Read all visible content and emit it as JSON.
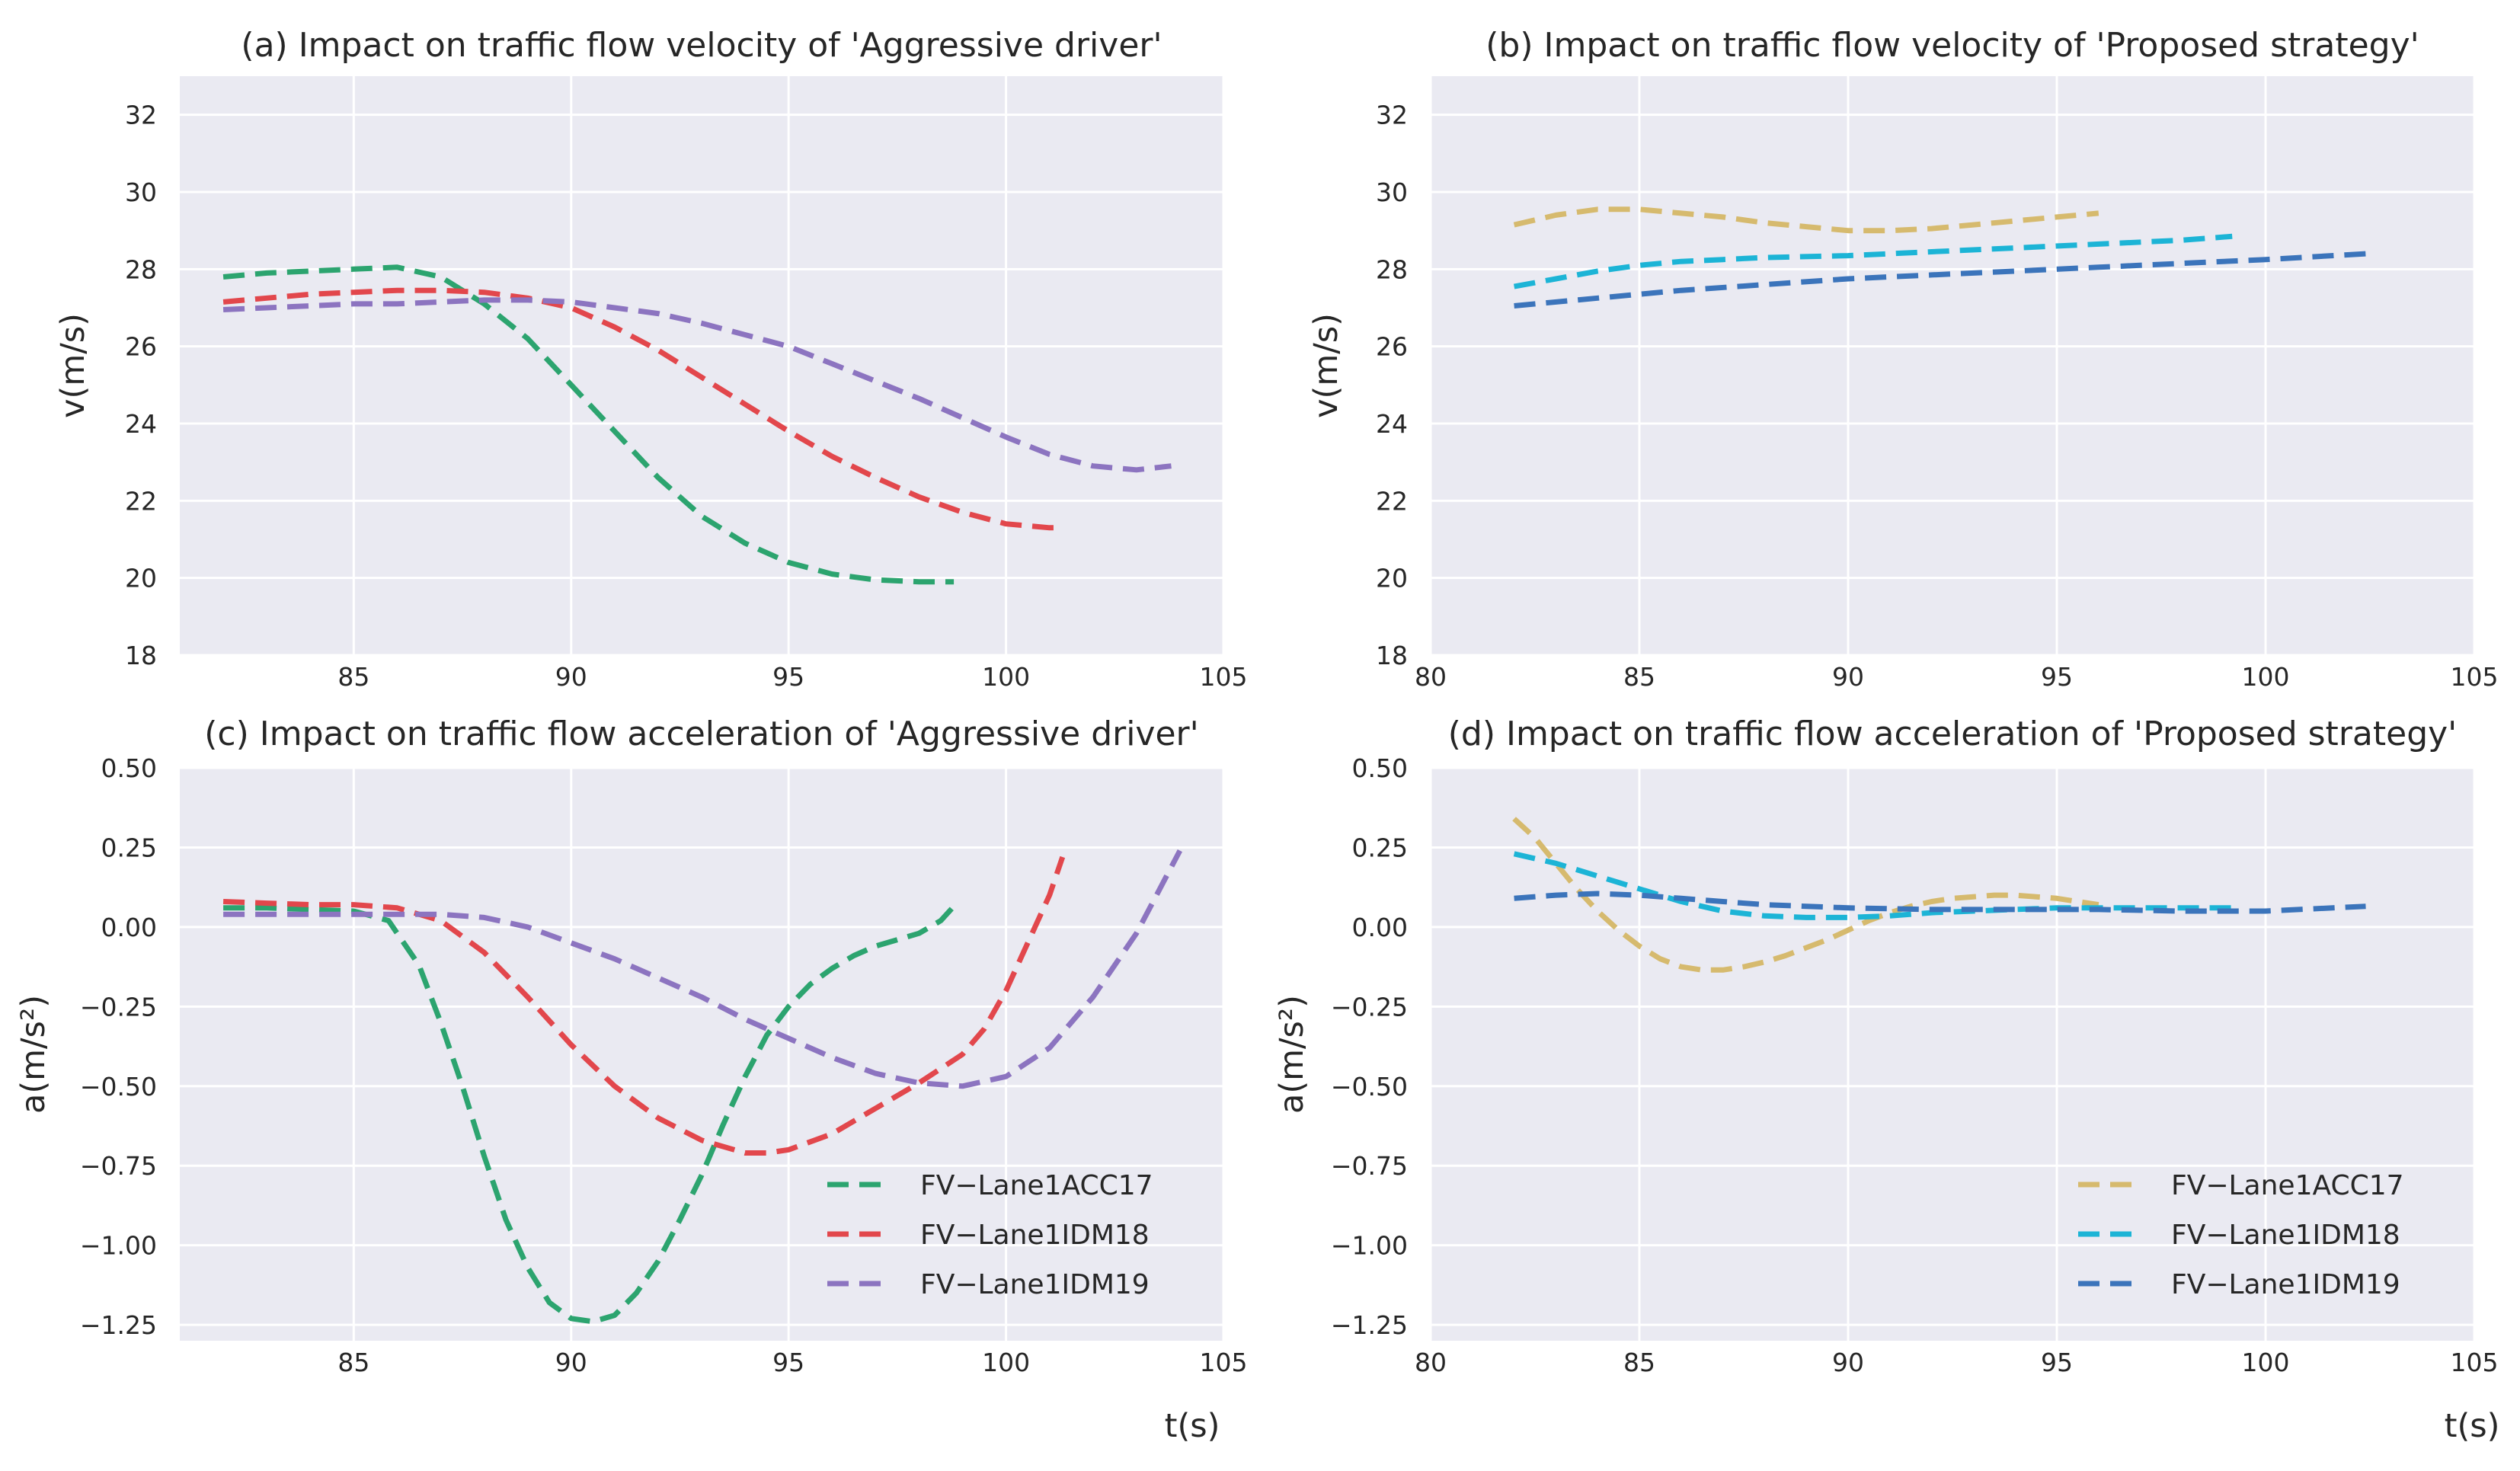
{
  "colors": {
    "background": "#eaeaf2",
    "grid": "#ffffff",
    "text": "#262626"
  },
  "chart_data": [
    {
      "id": "a",
      "type": "line",
      "title": "(a) Impact on traffic flow velocity of 'Aggressive driver'",
      "xlabel": "",
      "ylabel": "v(m/s)",
      "xlim": [
        81,
        105
      ],
      "ylim": [
        18,
        33
      ],
      "xticks": [
        85,
        90,
        95,
        100,
        105
      ],
      "yticks": [
        18,
        20,
        22,
        24,
        26,
        28,
        30,
        32
      ],
      "legend": null,
      "series": [
        {
          "name": "FV−Lane1ACC17",
          "color": "#2ca46f",
          "x": [
            82,
            83,
            84,
            85,
            86,
            87,
            88,
            89,
            90,
            91,
            92,
            93,
            94,
            95,
            96,
            97,
            98,
            98.8
          ],
          "y": [
            27.8,
            27.9,
            27.95,
            28.0,
            28.05,
            27.8,
            27.1,
            26.2,
            25.0,
            23.8,
            22.6,
            21.6,
            20.9,
            20.4,
            20.1,
            19.95,
            19.9,
            19.9
          ]
        },
        {
          "name": "FV−Lane1IDM18",
          "color": "#e2474c",
          "x": [
            82,
            83,
            84,
            85,
            86,
            87,
            88,
            89,
            90,
            91,
            92,
            93,
            94,
            95,
            96,
            97,
            98,
            99,
            100,
            101,
            101.3
          ],
          "y": [
            27.15,
            27.25,
            27.35,
            27.4,
            27.45,
            27.45,
            27.4,
            27.25,
            27.0,
            26.5,
            25.9,
            25.2,
            24.5,
            23.8,
            23.15,
            22.6,
            22.1,
            21.7,
            21.4,
            21.3,
            21.3
          ]
        },
        {
          "name": "FV−Lane1IDM19",
          "color": "#8c74c0",
          "x": [
            82,
            83,
            84,
            85,
            86,
            87,
            88,
            89,
            90,
            91,
            92,
            93,
            94,
            95,
            96,
            97,
            98,
            99,
            100,
            101,
            102,
            103,
            103.8
          ],
          "y": [
            26.95,
            27.0,
            27.05,
            27.1,
            27.1,
            27.15,
            27.2,
            27.2,
            27.15,
            27.0,
            26.85,
            26.6,
            26.3,
            26.0,
            25.55,
            25.1,
            24.65,
            24.15,
            23.65,
            23.2,
            22.9,
            22.8,
            22.9
          ]
        }
      ]
    },
    {
      "id": "b",
      "type": "line",
      "title": "(b) Impact on traffic flow velocity of 'Proposed strategy'",
      "xlabel": "",
      "ylabel": "v(m/s)",
      "xlim": [
        80,
        105
      ],
      "ylim": [
        18,
        33
      ],
      "xticks": [
        80,
        85,
        90,
        95,
        100,
        105
      ],
      "yticks": [
        18,
        20,
        22,
        24,
        26,
        28,
        30,
        32
      ],
      "legend": null,
      "series": [
        {
          "name": "FV−Lane1ACC17",
          "color": "#d6ba6e",
          "x": [
            82,
            83,
            84,
            85,
            86,
            87,
            88,
            89,
            90,
            91,
            92,
            93,
            94,
            95,
            96
          ],
          "y": [
            29.15,
            29.4,
            29.55,
            29.55,
            29.45,
            29.35,
            29.2,
            29.1,
            29.0,
            29.0,
            29.05,
            29.15,
            29.25,
            29.35,
            29.45
          ]
        },
        {
          "name": "FV−Lane1IDM18",
          "color": "#1cb4d6",
          "x": [
            82,
            83,
            84,
            85,
            86,
            87,
            88,
            90,
            92,
            94,
            96,
            98,
            99.2
          ],
          "y": [
            27.55,
            27.75,
            27.95,
            28.1,
            28.2,
            28.25,
            28.3,
            28.35,
            28.45,
            28.55,
            28.65,
            28.75,
            28.85
          ]
        },
        {
          "name": "FV−Lane1IDM19",
          "color": "#3b74bb",
          "x": [
            82,
            84,
            86,
            88,
            90,
            92,
            94,
            96,
            98,
            100,
            102.4
          ],
          "y": [
            27.05,
            27.25,
            27.45,
            27.6,
            27.75,
            27.85,
            27.95,
            28.05,
            28.15,
            28.25,
            28.4
          ]
        }
      ]
    },
    {
      "id": "c",
      "type": "line",
      "title": "(c) Impact on traffic flow acceleration of 'Aggressive driver'",
      "xlabel": "t(s)",
      "ylabel": "a(m/s²)",
      "xlim": [
        81,
        105
      ],
      "ylim": [
        -1.3,
        0.5
      ],
      "xticks": [
        85,
        90,
        95,
        100,
        105
      ],
      "yticks": [
        -1.25,
        -1.0,
        -0.75,
        -0.5,
        -0.25,
        0.0,
        0.25,
        0.5
      ],
      "ytick_labels": [
        "−1.25",
        "−1.00",
        "−0.75",
        "−0.50",
        "−0.25",
        "0.00",
        "0.25",
        "0.50"
      ],
      "legend": "lower-right",
      "series": [
        {
          "name": "FV−Lane1ACC17",
          "color": "#2ca46f",
          "x": [
            82,
            83,
            84,
            85,
            85.8,
            86.5,
            87,
            87.5,
            88,
            88.5,
            89,
            89.5,
            90,
            90.5,
            91,
            91.5,
            92,
            92.5,
            93,
            93.5,
            94,
            94.5,
            95,
            95.5,
            96,
            96.5,
            97,
            97.5,
            98,
            98.5,
            98.9
          ],
          "y": [
            0.06,
            0.06,
            0.055,
            0.05,
            0.02,
            -0.12,
            -0.3,
            -0.5,
            -0.72,
            -0.92,
            -1.07,
            -1.18,
            -1.23,
            -1.24,
            -1.22,
            -1.15,
            -1.05,
            -0.92,
            -0.78,
            -0.62,
            -0.47,
            -0.34,
            -0.25,
            -0.18,
            -0.13,
            -0.09,
            -0.06,
            -0.04,
            -0.02,
            0.02,
            0.08
          ]
        },
        {
          "name": "FV−Lane1IDM18",
          "color": "#e2474c",
          "x": [
            82,
            83,
            84,
            85,
            86,
            86.5,
            87,
            88,
            89,
            90,
            91,
            92,
            93,
            94,
            94.5,
            95,
            96,
            97,
            98,
            99,
            99.5,
            100,
            100.5,
            101,
            101.3
          ],
          "y": [
            0.08,
            0.075,
            0.07,
            0.07,
            0.06,
            0.04,
            0.02,
            -0.08,
            -0.22,
            -0.37,
            -0.5,
            -0.6,
            -0.67,
            -0.71,
            -0.71,
            -0.7,
            -0.65,
            -0.57,
            -0.49,
            -0.4,
            -0.32,
            -0.2,
            -0.05,
            0.1,
            0.22
          ]
        },
        {
          "name": "FV−Lane1IDM19",
          "color": "#8c74c0",
          "x": [
            82,
            84,
            86,
            87,
            88,
            89,
            90,
            91,
            92,
            93,
            94,
            95,
            96,
            97,
            98,
            99,
            100,
            101,
            102,
            103,
            104
          ],
          "y": [
            0.04,
            0.04,
            0.04,
            0.04,
            0.03,
            0.0,
            -0.05,
            -0.1,
            -0.16,
            -0.22,
            -0.29,
            -0.35,
            -0.41,
            -0.46,
            -0.49,
            -0.5,
            -0.47,
            -0.38,
            -0.22,
            -0.02,
            0.24
          ]
        }
      ],
      "legend_entries": [
        "FV−Lane1ACC17",
        "FV−Lane1IDM18",
        "FV−Lane1IDM19"
      ]
    },
    {
      "id": "d",
      "type": "line",
      "title": "(d) Impact on traffic flow acceleration of 'Proposed strategy'",
      "xlabel": "t(s)",
      "ylabel": "a(m/s²)",
      "xlim": [
        80,
        105
      ],
      "ylim": [
        -1.3,
        0.5
      ],
      "xticks": [
        80,
        85,
        90,
        95,
        100,
        105
      ],
      "yticks": [
        -1.25,
        -1.0,
        -0.75,
        -0.5,
        -0.25,
        0.0,
        0.25,
        0.5
      ],
      "ytick_labels": [
        "−1.25",
        "−1.00",
        "−0.75",
        "−0.50",
        "−0.25",
        "0.00",
        "0.25",
        "0.50"
      ],
      "legend": "lower-right",
      "series": [
        {
          "name": "FV−Lane1ACC17",
          "color": "#d6ba6e",
          "x": [
            82,
            82.5,
            83,
            83.5,
            84,
            84.5,
            85,
            85.5,
            86,
            86.5,
            87,
            87.5,
            88,
            88.5,
            89,
            89.5,
            90,
            90.5,
            91,
            91.5,
            92,
            92.5,
            93,
            93.5,
            94,
            94.5,
            95,
            95.5,
            96
          ],
          "y": [
            0.34,
            0.28,
            0.2,
            0.12,
            0.05,
            -0.01,
            -0.06,
            -0.1,
            -0.125,
            -0.135,
            -0.135,
            -0.125,
            -0.11,
            -0.09,
            -0.065,
            -0.04,
            -0.01,
            0.02,
            0.045,
            0.065,
            0.08,
            0.09,
            0.095,
            0.1,
            0.1,
            0.095,
            0.09,
            0.08,
            0.07
          ]
        },
        {
          "name": "FV−Lane1IDM18",
          "color": "#1cb4d6",
          "x": [
            82,
            83,
            84,
            85,
            86,
            87,
            88,
            89,
            90,
            91,
            92,
            93,
            94,
            95,
            96,
            97,
            98,
            99.2
          ],
          "y": [
            0.23,
            0.2,
            0.16,
            0.12,
            0.08,
            0.05,
            0.035,
            0.03,
            0.03,
            0.035,
            0.045,
            0.05,
            0.055,
            0.06,
            0.06,
            0.06,
            0.06,
            0.06
          ]
        },
        {
          "name": "FV−Lane1IDM19",
          "color": "#3b74bb",
          "x": [
            82,
            83,
            84,
            85,
            86,
            87,
            88,
            89,
            90,
            92,
            94,
            96,
            98,
            100,
            102.4
          ],
          "y": [
            0.09,
            0.1,
            0.105,
            0.1,
            0.09,
            0.08,
            0.07,
            0.065,
            0.06,
            0.055,
            0.055,
            0.055,
            0.05,
            0.05,
            0.065
          ]
        }
      ],
      "legend_entries": [
        "FV−Lane1ACC17",
        "FV−Lane1IDM18",
        "FV−Lane1IDM19"
      ]
    }
  ]
}
